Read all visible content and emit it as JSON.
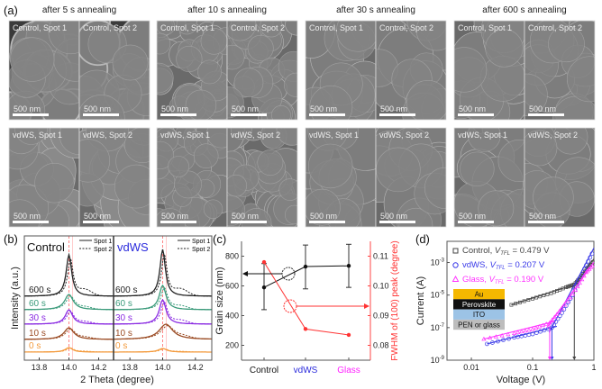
{
  "panel_labels": {
    "a": "(a)",
    "b": "(b)",
    "c": "(c)",
    "d": "(d)"
  },
  "sem": {
    "columns": [
      {
        "title": "after 5 s annealing",
        "style": "voids"
      },
      {
        "title": "after 10 s annealing",
        "style": "small"
      },
      {
        "title": "after 30 s annealing",
        "style": "large"
      },
      {
        "title": "after 600 s annealing",
        "style": "large"
      }
    ],
    "rows": [
      {
        "spots": [
          "Control, Spot 1",
          "Control, Spot 2"
        ]
      },
      {
        "spots": [
          "vdWS, Spot 1",
          "vdWS, Spot 2"
        ]
      }
    ],
    "scale_bar": "500 nm"
  },
  "chart_data": [
    {
      "id": "b",
      "type": "line",
      "xlabel": "2 Theta (degree)",
      "ylabel": "Intensity (a.u.)",
      "xlim": [
        13.7,
        14.3
      ],
      "xticks": [
        "13.8",
        "14.0",
        "14.2"
      ],
      "reference_line": 14.0,
      "legend": [
        "Spot 1",
        "Spot 2"
      ],
      "subplots": [
        {
          "title": "Control",
          "title_color": "#111111",
          "series": [
            {
              "label": "0 s",
              "color": "#f39a3c",
              "offset": 0,
              "peak": 14.0,
              "height": 5,
              "width": 0.06
            },
            {
              "label": "10 s",
              "color": "#9a4a22",
              "offset": 14,
              "peak": 14.0,
              "height": 13,
              "width": 0.08
            },
            {
              "label": "30 s",
              "color": "#8a2be2",
              "offset": 31,
              "peak": 14.0,
              "height": 16,
              "width": 0.06
            },
            {
              "label": "60 s",
              "color": "#3a9a7a",
              "offset": 47,
              "peak": 14.0,
              "height": 17,
              "width": 0.07
            },
            {
              "label": "600 s",
              "color": "#222222",
              "offset": 62,
              "peak": 14.0,
              "height": 46,
              "width": 0.045
            }
          ]
        },
        {
          "title": "vdWS",
          "title_color": "#2b2bdc",
          "series": [
            {
              "label": "0 s",
              "color": "#f39a3c",
              "offset": 0,
              "peak": 14.0,
              "height": 4,
              "width": 0.06
            },
            {
              "label": "10 s",
              "color": "#9a4a22",
              "offset": 14,
              "peak": 14.02,
              "height": 17,
              "width": 0.1
            },
            {
              "label": "30 s",
              "color": "#8a2be2",
              "offset": 31,
              "peak": 14.0,
              "height": 27,
              "width": 0.05
            },
            {
              "label": "60 s",
              "color": "#3a9a7a",
              "offset": 47,
              "peak": 14.0,
              "height": 27,
              "width": 0.05
            },
            {
              "label": "600 s",
              "color": "#222222",
              "offset": 62,
              "peak": 14.0,
              "height": 52,
              "width": 0.04
            }
          ]
        }
      ]
    },
    {
      "id": "c",
      "type": "line",
      "categories": [
        "Control",
        "vdWS",
        "Glass"
      ],
      "category_colors": [
        "#111111",
        "#2b2bdc",
        "#ff22ff"
      ],
      "ylabel": "Grain size (nm)",
      "ylim": [
        100,
        900
      ],
      "yticks": [
        200,
        400,
        600,
        800
      ],
      "y2label": "FWHM of (100) peak (degree)",
      "y2lim": [
        0.075,
        0.115
      ],
      "y2ticks": [
        "0.08",
        "0.09",
        "0.10",
        "0.11"
      ],
      "grain_size": {
        "values": [
          590,
          730,
          735
        ],
        "err_low": [
          440,
          580,
          590
        ],
        "err_high": [
          750,
          875,
          880
        ],
        "color": "#111111"
      },
      "fwhm": {
        "values": [
          0.108,
          0.0855,
          0.0835
        ],
        "color": "#ff3333"
      }
    },
    {
      "id": "d",
      "type": "scatter",
      "xlabel": "Voltage (V)",
      "ylabel": "Current (A)",
      "xscale": "log",
      "yscale": "log",
      "xlim": [
        0.004,
        1
      ],
      "ylim": [
        1e-09,
        0.02
      ],
      "xticks": [
        "0.01",
        "0.1",
        "1"
      ],
      "yticks": [
        {
          "base": "10",
          "exp": "-9"
        },
        {
          "base": "10",
          "exp": "-7"
        },
        {
          "base": "10",
          "exp": "-5"
        },
        {
          "base": "10",
          "exp": "-3"
        }
      ],
      "series": [
        {
          "name": "Control",
          "vtfl_label": "V",
          "vtfl_sub": "TFL",
          "vtfl_value": "= 0.479 V",
          "vtfl": 0.479,
          "marker": "square",
          "color": "#444444",
          "points": [
            [
              0.045,
              2.5e-06
            ],
            [
              0.1,
              6e-06
            ],
            [
              0.2,
              1.3e-05
            ],
            [
              0.35,
              3e-05
            ],
            [
              0.479,
              4.5e-05
            ],
            [
              0.6,
              0.00012
            ],
            [
              0.8,
              0.0005
            ],
            [
              1,
              0.0013
            ]
          ]
        },
        {
          "name": "vdWS",
          "vtfl_label": "V",
          "vtfl_sub": "TFL",
          "vtfl_value": "= 0.207 V",
          "vtfl": 0.207,
          "marker": "circle",
          "color": "#3a3ae8",
          "points": [
            [
              0.018,
              1e-08
            ],
            [
              0.05,
              2.5e-08
            ],
            [
              0.1,
              4e-08
            ],
            [
              0.207,
              1e-07
            ],
            [
              0.3,
              8e-07
            ],
            [
              0.45,
              1e-05
            ],
            [
              0.7,
              0.0004
            ],
            [
              1,
              0.006
            ]
          ]
        },
        {
          "name": "Glass",
          "vtfl_label": "V",
          "vtfl_sub": "TFL",
          "vtfl_value": "= 0.190 V",
          "vtfl": 0.19,
          "marker": "triangle",
          "color": "#ff33ff",
          "points": [
            [
              0.016,
              2e-08
            ],
            [
              0.05,
              4.5e-08
            ],
            [
              0.1,
              8e-08
            ],
            [
              0.19,
              2e-07
            ],
            [
              0.3,
              1.5e-06
            ],
            [
              0.5,
              2e-05
            ],
            [
              0.75,
              0.00025
            ],
            [
              1,
              0.0008
            ]
          ]
        }
      ],
      "inset_layers": [
        {
          "label": "Au",
          "color": "#f5b800",
          "text_color": "#111111"
        },
        {
          "label": "Perovskite",
          "color": "#111111",
          "text_color": "#ffffff"
        },
        {
          "label": "ITO",
          "color": "#9cc3e6",
          "text_color": "#111111"
        },
        {
          "label": "PEN or glass",
          "color": "#bdbdbd",
          "text_color": "#111111"
        }
      ]
    }
  ]
}
